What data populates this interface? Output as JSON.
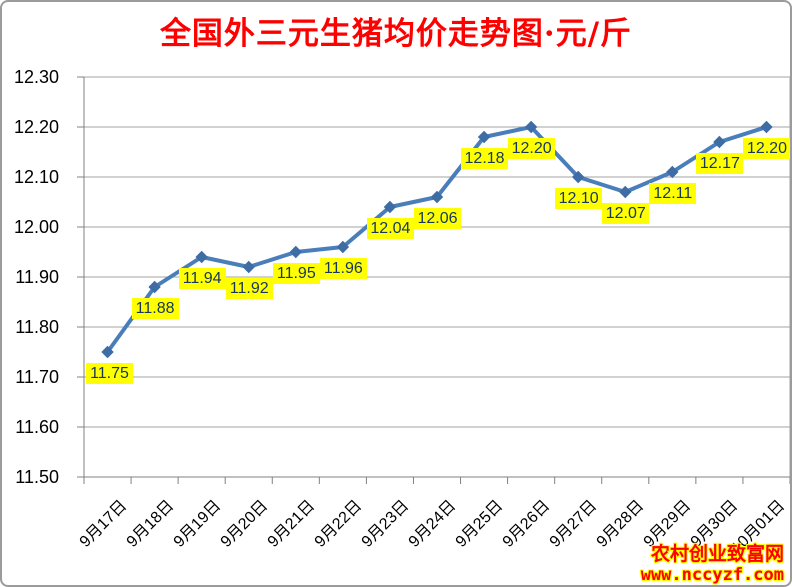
{
  "title": "全国外三元生猪均价走势图·元/斤",
  "watermark": {
    "site_name": "农村创业致富网",
    "site_url": "www.nccyzf.com"
  },
  "chart_data": {
    "type": "line",
    "title": "全国外三元生猪均价走势图·元/斤",
    "unit": "元/斤",
    "categories": [
      "9月17日",
      "9月18日",
      "9月19日",
      "9月20日",
      "9月21日",
      "9月22日",
      "9月23日",
      "9月24日",
      "9月25日",
      "9月26日",
      "9月27日",
      "9月28日",
      "9月29日",
      "9月30日",
      "10月01日"
    ],
    "values": [
      11.75,
      11.88,
      11.94,
      11.92,
      11.95,
      11.96,
      12.04,
      12.06,
      12.18,
      12.2,
      12.1,
      12.07,
      12.11,
      12.17,
      12.2
    ],
    "data_labels": [
      "11.75",
      "11.88",
      "11.94",
      "11.92",
      "11.95",
      "11.96",
      "12.04",
      "12.06",
      "12.18",
      "12.20",
      "12.10",
      "12.07",
      "12.11",
      "12.17",
      "12.20"
    ],
    "ylim": [
      11.5,
      12.3
    ],
    "ytick_step": 0.1,
    "ytick_labels": [
      "12.30",
      "12.20",
      "12.10",
      "12.00",
      "11.90",
      "11.80",
      "11.70",
      "11.60",
      "11.50"
    ],
    "grid": true,
    "legend_position": "none",
    "marker": "diamond",
    "xlabel": "",
    "ylabel": ""
  },
  "colors": {
    "line": "#4A7EBB",
    "marker": "#3E6CA5",
    "gridline": "#A3A3A3",
    "axis": "#808080",
    "data_label_bg": "#FFFF00",
    "data_label_text": "#17375E",
    "title_text": "#FF0000",
    "axis_text": "#000000",
    "watermark_text": "#FF0000",
    "watermark_outline": "#FFFF00",
    "background": "#FFFFFF",
    "border": "#9B9B9B"
  }
}
